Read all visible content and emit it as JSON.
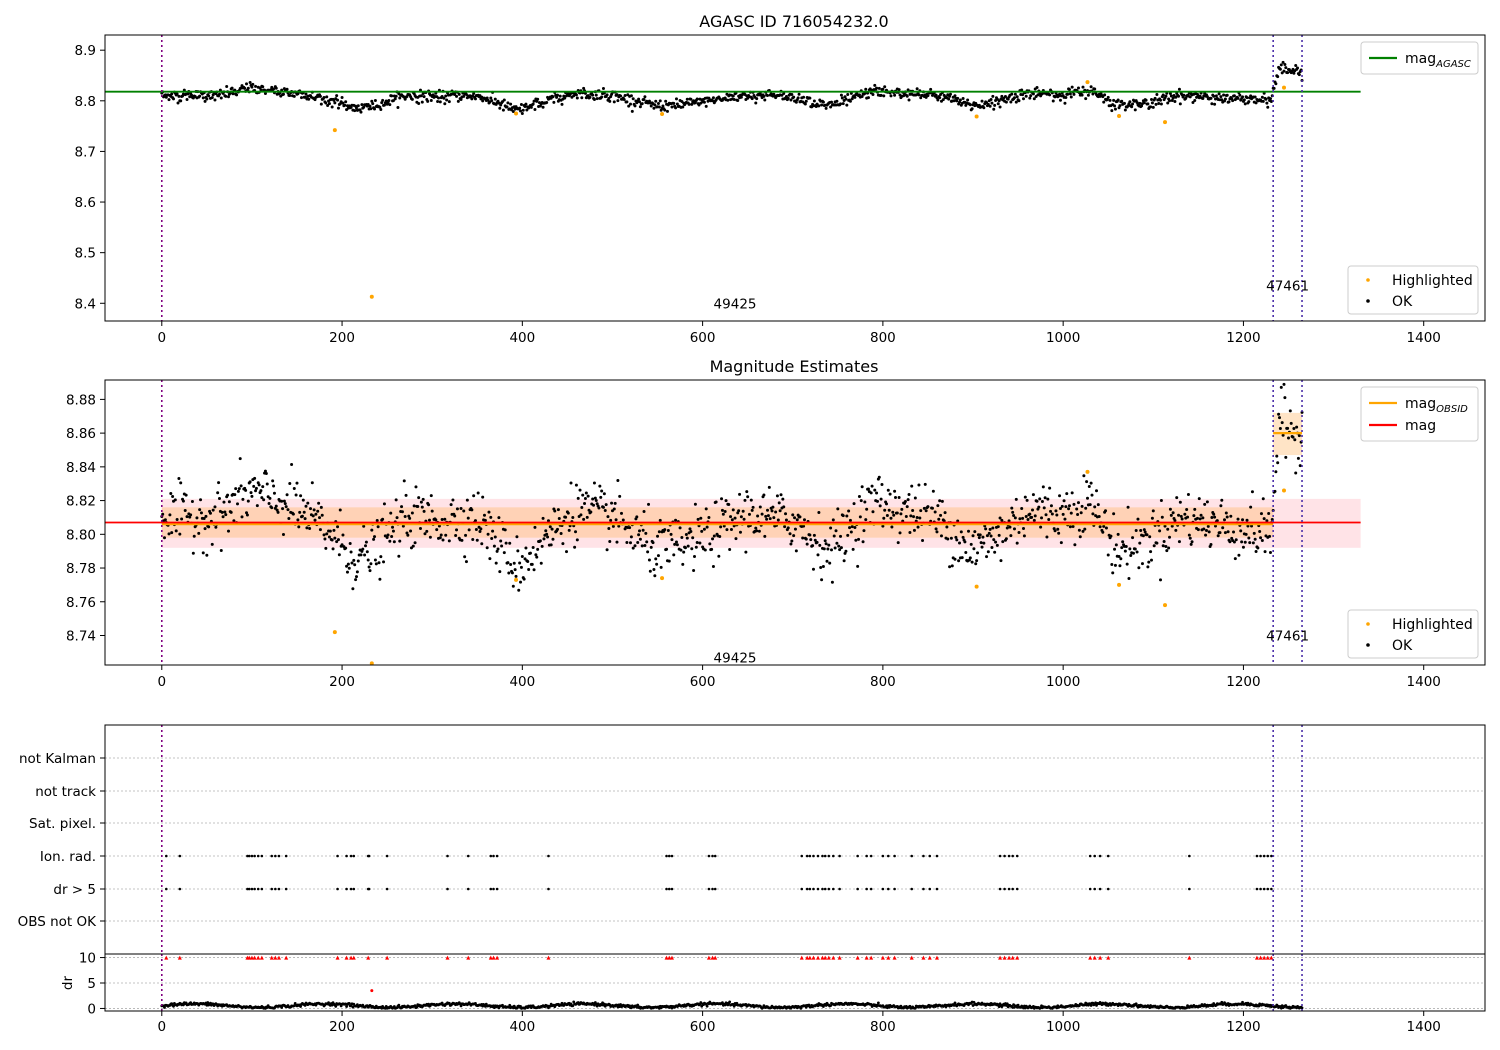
{
  "chart_data": [
    {
      "type": "scatter",
      "title": "AGASC ID 716054232.0",
      "xlim": [
        -63,
        1468
      ],
      "ylim": [
        8.365,
        8.93
      ],
      "x_ticks": [
        0,
        200,
        400,
        600,
        800,
        1000,
        1200,
        1400
      ],
      "y_ticks": [
        8.4,
        8.5,
        8.6,
        8.7,
        8.8,
        8.9
      ],
      "y_tick_labels": [
        "8.4",
        "8.5",
        "8.6",
        "8.7",
        "8.8",
        "8.9"
      ],
      "hlines": [
        {
          "name": "mag_AGASC",
          "y": 8.818,
          "x0": -63,
          "x1": 1330,
          "color": "#008000"
        }
      ],
      "observation_bounds": [
        0,
        1233,
        1265
      ],
      "annotations": [
        {
          "text": "49425",
          "x": 616,
          "y": 8.39
        },
        {
          "text": "47461",
          "x": 1249,
          "y": 8.425
        }
      ],
      "legend_top": {
        "entries": [
          {
            "name": "mag",
            "sub": "AGASC",
            "color": "#008000"
          }
        ],
        "position": "upper right"
      },
      "legend_bottom": {
        "entries": [
          {
            "name": "Highlighted",
            "color": "#ffa500"
          },
          {
            "name": "OK",
            "color": "#000000"
          }
        ],
        "position": "lower right"
      },
      "highlighted_points": {
        "x": [
          192,
          233,
          393,
          555,
          904,
          1027,
          1062,
          1113,
          1245
        ],
        "y": [
          8.742,
          8.413,
          8.775,
          8.774,
          8.769,
          8.837,
          8.77,
          8.758,
          8.826
        ]
      },
      "ok_series": {
        "x_range": [
          0,
          1265
        ],
        "levels_x": [
          0,
          60,
          100,
          150,
          190,
          215,
          235,
          270,
          310,
          350,
          395,
          420,
          460,
          500,
          550,
          590,
          650,
          700,
          740,
          790,
          820,
          860,
          900,
          930,
          960,
          1000,
          1030,
          1060,
          1090,
          1130,
          1180,
          1230,
          1240,
          1265
        ],
        "levels_y": [
          8.81,
          8.81,
          8.825,
          8.815,
          8.8,
          8.785,
          8.79,
          8.81,
          8.808,
          8.81,
          8.78,
          8.795,
          8.815,
          8.81,
          8.79,
          8.795,
          8.812,
          8.808,
          8.79,
          8.82,
          8.815,
          8.81,
          8.79,
          8.8,
          8.815,
          8.812,
          8.82,
          8.79,
          8.795,
          8.81,
          8.805,
          8.8,
          8.865,
          8.858
        ]
      }
    },
    {
      "type": "scatter",
      "title": "Magnitude Estimates",
      "xlim": [
        -63,
        1468
      ],
      "ylim": [
        8.7225,
        8.8915
      ],
      "x_ticks": [
        0,
        200,
        400,
        600,
        800,
        1000,
        1200,
        1400
      ],
      "y_ticks": [
        8.74,
        8.76,
        8.78,
        8.8,
        8.82,
        8.84,
        8.86,
        8.88
      ],
      "y_tick_labels": [
        "8.74",
        "8.76",
        "8.78",
        "8.80",
        "8.82",
        "8.84",
        "8.86",
        "8.88"
      ],
      "mag": 8.807,
      "mag_band": [
        8.792,
        8.821
      ],
      "mag_obsid": [
        {
          "x0": 0,
          "x1": 1233,
          "y": 8.806,
          "band": [
            8.798,
            8.816
          ]
        },
        {
          "x0": 1233,
          "x1": 1265,
          "y": 8.86,
          "band": [
            8.847,
            8.872
          ]
        }
      ],
      "observation_bounds": [
        0,
        1233,
        1265
      ],
      "annotations": [
        {
          "text": "49425",
          "x": 616,
          "y": 8.7265
        },
        {
          "text": "47461",
          "x": 1249,
          "y": 8.7395
        }
      ],
      "legend_top": {
        "entries": [
          {
            "name": "mag",
            "sub": "OBSID",
            "color": "#ffa500"
          },
          {
            "name": "mag",
            "sub": "",
            "color": "#ff0000"
          }
        ],
        "position": "upper right"
      },
      "legend_bottom": {
        "entries": [
          {
            "name": "Highlighted",
            "color": "#ffa500"
          },
          {
            "name": "OK",
            "color": "#000000"
          }
        ],
        "position": "lower right"
      },
      "highlighted_points": {
        "x": [
          192,
          233,
          393,
          555,
          904,
          1027,
          1062,
          1113,
          1245
        ],
        "y": [
          8.742,
          8.7235,
          8.773,
          8.774,
          8.769,
          8.837,
          8.77,
          8.758,
          8.826
        ]
      },
      "ok_series": {
        "x_range": [
          0,
          1265
        ],
        "levels_x": [
          0,
          60,
          100,
          150,
          190,
          215,
          235,
          270,
          310,
          350,
          395,
          420,
          460,
          500,
          550,
          590,
          650,
          700,
          740,
          790,
          820,
          860,
          900,
          930,
          960,
          1000,
          1030,
          1060,
          1090,
          1130,
          1180,
          1230,
          1240,
          1265
        ],
        "levels_y": [
          8.81,
          8.81,
          8.825,
          8.815,
          8.8,
          8.785,
          8.79,
          8.81,
          8.808,
          8.81,
          8.78,
          8.795,
          8.815,
          8.81,
          8.79,
          8.795,
          8.812,
          8.808,
          8.79,
          8.82,
          8.815,
          8.81,
          8.79,
          8.8,
          8.815,
          8.812,
          8.82,
          8.79,
          8.795,
          8.81,
          8.805,
          8.8,
          8.865,
          8.858
        ]
      }
    },
    {
      "type": "scatter",
      "title": "",
      "xlim": [
        -63,
        1468
      ],
      "flag_rows": [
        "not Kalman",
        "not track",
        "Sat. pixel.",
        "Ion. rad.",
        "dr > 5",
        "OBS not OK"
      ],
      "flag_points": {
        "Ion. rad.": [
          5,
          20,
          95,
          97,
          100,
          103,
          107,
          111,
          122,
          126,
          130,
          138,
          195,
          205,
          210,
          213,
          229,
          230,
          250,
          317,
          340,
          365,
          368,
          372,
          429,
          560,
          563,
          566,
          607,
          611,
          614,
          710,
          716,
          719,
          723,
          728,
          733,
          736,
          740,
          745,
          752,
          772,
          782,
          787,
          800,
          806,
          813,
          832,
          845,
          852,
          860,
          930,
          935,
          940,
          944,
          949,
          1030,
          1035,
          1041,
          1050,
          1140,
          1215,
          1219,
          1223,
          1227,
          1231
        ],
        "dr > 5": [
          5,
          20,
          95,
          97,
          100,
          103,
          107,
          111,
          122,
          126,
          130,
          138,
          195,
          205,
          210,
          213,
          229,
          230,
          250,
          317,
          340,
          365,
          368,
          372,
          429,
          560,
          563,
          566,
          607,
          611,
          614,
          710,
          716,
          719,
          723,
          728,
          733,
          736,
          740,
          745,
          752,
          772,
          782,
          787,
          800,
          806,
          813,
          832,
          845,
          852,
          860,
          930,
          935,
          940,
          944,
          949,
          1030,
          1035,
          1041,
          1050,
          1140,
          1215,
          1219,
          1223,
          1227,
          1231
        ]
      },
      "dr_panel": {
        "ylabel": "dr",
        "ylim": [
          -0.5,
          10.7
        ],
        "y_ticks": [
          0,
          5,
          10
        ],
        "red_points_x": [
          5,
          20,
          95,
          97,
          100,
          103,
          107,
          111,
          122,
          126,
          130,
          138,
          195,
          205,
          210,
          213,
          229,
          250,
          317,
          340,
          365,
          368,
          372,
          429,
          560,
          563,
          566,
          607,
          611,
          614,
          710,
          716,
          719,
          723,
          728,
          733,
          736,
          740,
          745,
          752,
          772,
          782,
          787,
          800,
          806,
          813,
          832,
          845,
          852,
          860,
          930,
          935,
          940,
          944,
          949,
          1030,
          1035,
          1041,
          1050,
          1140,
          1215,
          1219,
          1223,
          1227,
          1231
        ],
        "red_points_y": 10,
        "extra_red_point": {
          "x": 233,
          "y": 3.5
        },
        "black_series_range": [
          0,
          1.2
        ]
      },
      "observation_bounds": [
        0,
        1233,
        1265
      ]
    }
  ]
}
